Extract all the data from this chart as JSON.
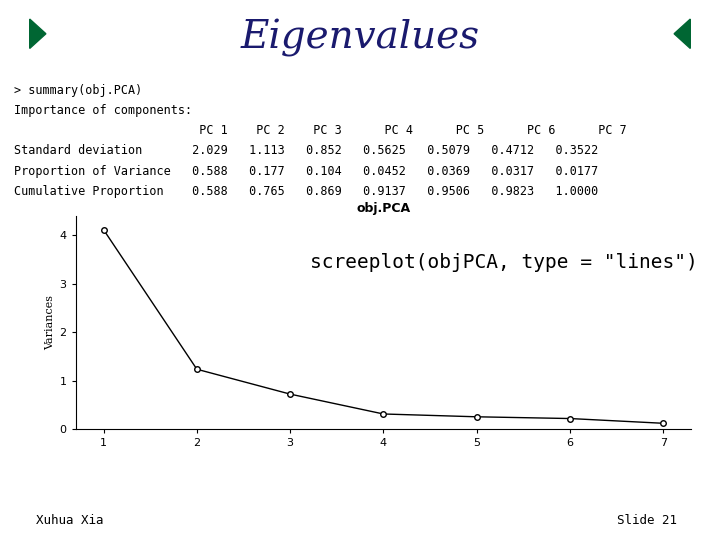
{
  "title": "Eigenvalues",
  "title_color": "#1a1a6e",
  "title_fontsize": 28,
  "slide_bg": "#ffffff",
  "header_line1_color": "#007070",
  "header_line2_color": "#bb00bb",
  "nav_box_color": "#3dbd8c",
  "nav_arrow_color": "#006633",
  "text_lines": [
    "> summary(obj.PCA)",
    "Importance of components:",
    "                          PC 1    PC 2    PC 3      PC 4      PC 5      PC 6      PC 7",
    "Standard deviation       2.029   1.113   0.852   0.5625   0.5079   0.4712   0.3522",
    "Proportion of Variance   0.588   0.177   0.104   0.0452   0.0369   0.0317   0.0177",
    "Cumulative Proportion    0.588   0.765   0.869   0.9137   0.9506   0.9823   1.0000"
  ],
  "plot_title": "obj.PCA",
  "plot_ylabel": "Variances",
  "x_values": [
    1,
    2,
    3,
    4,
    5,
    6,
    7
  ],
  "y_values": [
    4.117,
    1.239,
    0.726,
    0.316,
    0.258,
    0.222,
    0.124
  ],
  "xlim": [
    0.7,
    7.3
  ],
  "ylim": [
    0,
    4.4
  ],
  "yticks": [
    0,
    1,
    2,
    3,
    4
  ],
  "xticks": [
    1,
    2,
    3,
    4,
    5,
    6,
    7
  ],
  "screeplot_label": "screeplot(objPCA, type = \"lines\")",
  "footer_left": "Xuhua Xia",
  "footer_right": "Slide 21",
  "monospace_fontsize": 8.5,
  "plot_title_fontsize": 9,
  "screeplot_label_fontsize": 14
}
